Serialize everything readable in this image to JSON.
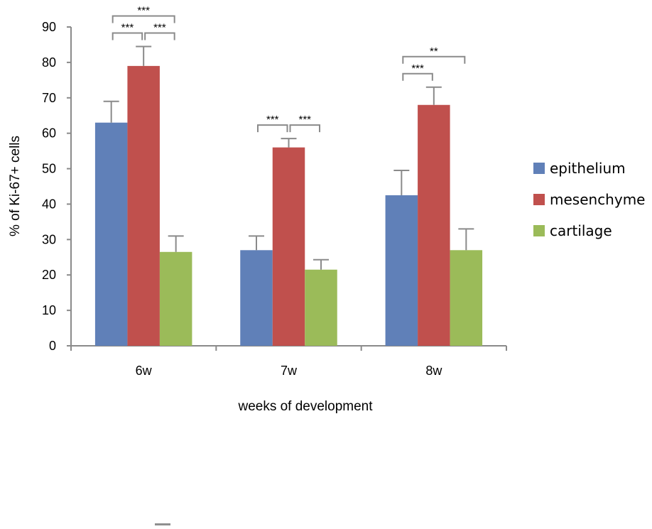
{
  "chart_data": {
    "type": "bar",
    "categories": [
      "6w",
      "7w",
      "8w"
    ],
    "series": [
      {
        "name": "epithelium",
        "values": [
          63,
          27,
          42.5
        ],
        "errors": [
          6,
          4,
          7
        ],
        "color": "#6080b8"
      },
      {
        "name": "mesenchyme",
        "values": [
          79,
          56,
          68
        ],
        "errors": [
          5.5,
          2.5,
          5
        ],
        "color": "#c0504d"
      },
      {
        "name": "cartilage",
        "values": [
          26.5,
          21.5,
          27
        ],
        "errors": [
          4.5,
          2.8,
          6
        ],
        "color": "#9bbb59"
      }
    ],
    "xlabel": "weeks of development",
    "ylabel": "% of Ki-67+ cells",
    "ylim": [
      0,
      90
    ],
    "yticks": [
      0,
      10,
      20,
      30,
      40,
      50,
      60,
      70,
      80,
      90
    ],
    "grid": false,
    "legend_position": "right",
    "significance": [
      {
        "category": "6w",
        "from": "epithelium",
        "to": "mesenchyme",
        "label": "***",
        "level": 1
      },
      {
        "category": "6w",
        "from": "mesenchyme",
        "to": "cartilage",
        "label": "***",
        "level": 1
      },
      {
        "category": "6w",
        "from": "epithelium",
        "to": "cartilage",
        "label": "***",
        "level": 2
      },
      {
        "category": "7w",
        "from": "epithelium",
        "to": "mesenchyme",
        "label": "***",
        "level": 1
      },
      {
        "category": "7w",
        "from": "mesenchyme",
        "to": "cartilage",
        "label": "***",
        "level": 1
      },
      {
        "category": "8w",
        "from": "epithelium",
        "to": "mesenchyme",
        "label": "***",
        "level": 1
      },
      {
        "category": "8w",
        "from": "epithelium",
        "to": "cartilage",
        "label": "**",
        "level": 2
      }
    ]
  }
}
